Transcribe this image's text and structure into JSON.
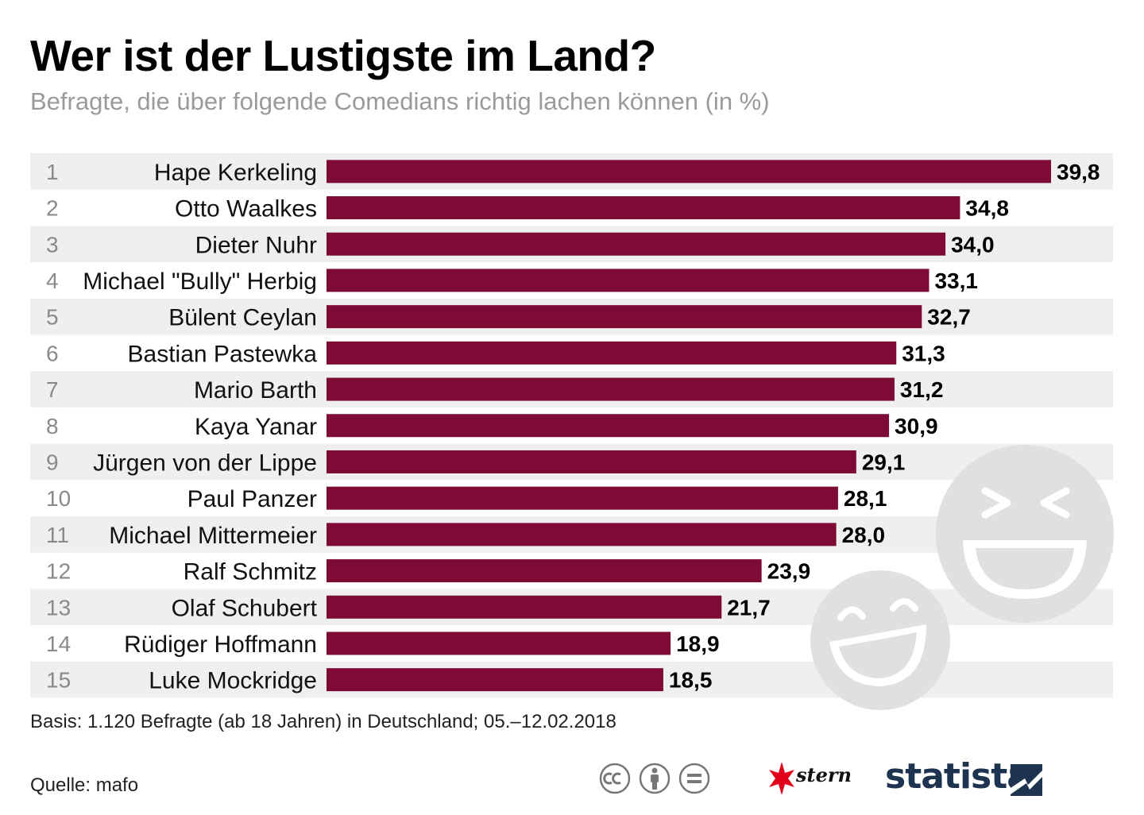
{
  "header": {
    "title": "Wer ist der Lustigste im Land?",
    "subtitle": "Befragte, die über folgende Comedians richtig lachen können (in %)"
  },
  "chart_data": {
    "type": "bar",
    "orientation": "horizontal",
    "title": "Wer ist der Lustigste im Land?",
    "subtitle": "Befragte, die über folgende Comedians richtig lachen können (in %)",
    "ranks": [
      "1",
      "2",
      "3",
      "4",
      "5",
      "6",
      "7",
      "8",
      "9",
      "10",
      "11",
      "12",
      "13",
      "14",
      "15"
    ],
    "categories": [
      "Hape Kerkeling",
      "Otto Waalkes",
      "Dieter Nuhr",
      "Michael \"Bully\" Herbig",
      "Bülent Ceylan",
      "Bastian Pastewka",
      "Mario Barth",
      "Kaya Yanar",
      "Jürgen von der Lippe",
      "Paul Panzer",
      "Michael Mittermeier",
      "Ralf Schmitz",
      "Olaf Schubert",
      "Rüdiger Hoffmann",
      "Luke Mockridge"
    ],
    "values": [
      39.8,
      34.8,
      34.0,
      33.1,
      32.7,
      31.3,
      31.2,
      30.9,
      29.1,
      28.1,
      28.0,
      23.9,
      21.7,
      18.9,
      18.5
    ],
    "value_labels": [
      "39,8",
      "34,8",
      "34,0",
      "33,1",
      "32,7",
      "31,3",
      "31,2",
      "30,9",
      "29,1",
      "28,1",
      "28,0",
      "23,9",
      "21,7",
      "18,9",
      "18,5"
    ],
    "unit": "%",
    "xlim": [
      0,
      39.8
    ],
    "bar_color": "#7d0b35",
    "stripe_color": "#efefef",
    "xlabel": "",
    "ylabel": ""
  },
  "footer": {
    "basis": "Basis: 1.120 Befragte (ab 18 Jahren) in Deutschland; 05.–12.02.2018",
    "source": "Quelle: mafo",
    "cc_icons": [
      "cc-icon",
      "by-icon",
      "nd-icon"
    ],
    "stern_label": "stern",
    "statista_label": "statista"
  },
  "colors": {
    "bar": "#7d0b35",
    "subtitle": "#9a9a9a",
    "stripe": "#efefef",
    "emoji": "#e0e0e0",
    "statista": "#1e3350",
    "stern_red": "#e2001a"
  }
}
